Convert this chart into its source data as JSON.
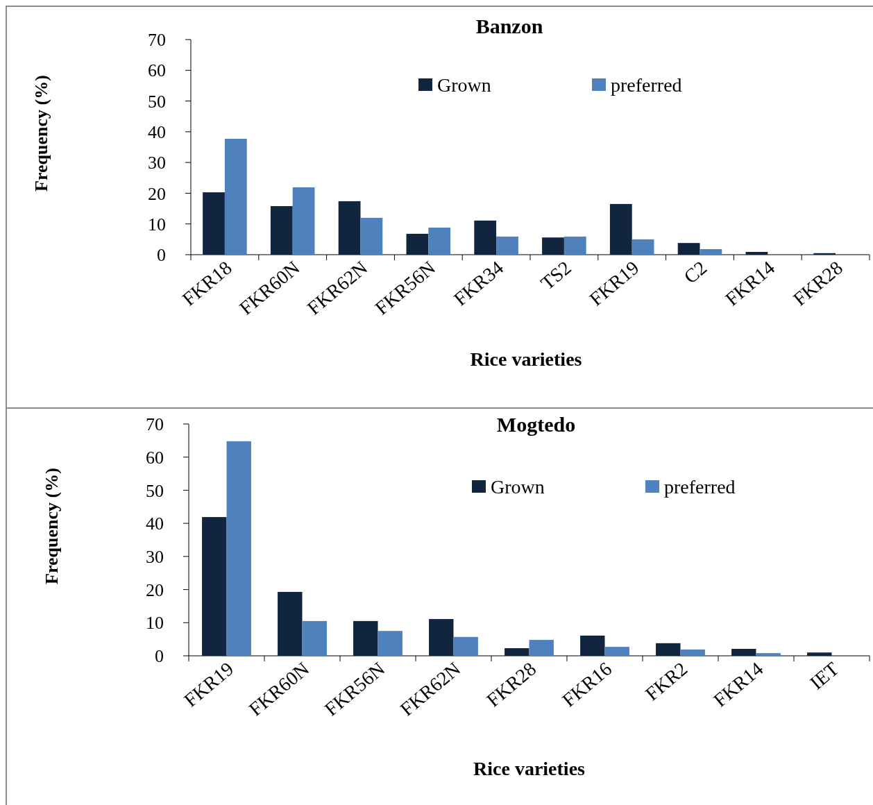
{
  "chart_data": [
    {
      "type": "bar",
      "title": "Banzon",
      "xlabel": "Rice varieties",
      "ylabel": "Frequency  (%)",
      "categories": [
        "FKR18",
        "FKR60N",
        "FKR62N",
        "FKR56N",
        "FKR34",
        "TS2",
        "FKR19",
        "C2",
        "FKR14",
        "FKR28"
      ],
      "series": [
        {
          "name": "Grown",
          "color": "#12253f",
          "values": [
            20.3,
            15.8,
            17.4,
            6.8,
            11.1,
            5.6,
            16.5,
            3.8,
            0.9,
            0.5
          ]
        },
        {
          "name": "preferred",
          "color": "#4f81bd",
          "values": [
            37.7,
            21.9,
            12.0,
            8.8,
            5.9,
            5.9,
            5.0,
            1.8,
            0,
            0
          ]
        }
      ],
      "ylim": [
        0,
        70
      ],
      "yticks": [
        0,
        10,
        20,
        30,
        40,
        50,
        60,
        70
      ],
      "grid": false,
      "legend": "top"
    },
    {
      "type": "bar",
      "title": "Mogtedo",
      "xlabel": "Rice varieties",
      "ylabel": "Frequency  (%)",
      "categories": [
        "FKR19",
        "FKR60N",
        "FKR56N",
        "FKR62N",
        "FKR28",
        "FKR16",
        "FKR2",
        "FKR14",
        "IET"
      ],
      "series": [
        {
          "name": "Grown",
          "color": "#12253f",
          "values": [
            41.9,
            19.3,
            10.5,
            11.1,
            2.3,
            6.1,
            3.8,
            2.1,
            1.0
          ]
        },
        {
          "name": "preferred",
          "color": "#4f81bd",
          "values": [
            64.8,
            10.5,
            7.5,
            5.7,
            4.8,
            2.7,
            1.9,
            0.8,
            0
          ]
        }
      ],
      "ylim": [
        0,
        70
      ],
      "yticks": [
        0,
        10,
        20,
        30,
        40,
        50,
        60,
        70
      ],
      "grid": false,
      "legend": "top"
    }
  ]
}
